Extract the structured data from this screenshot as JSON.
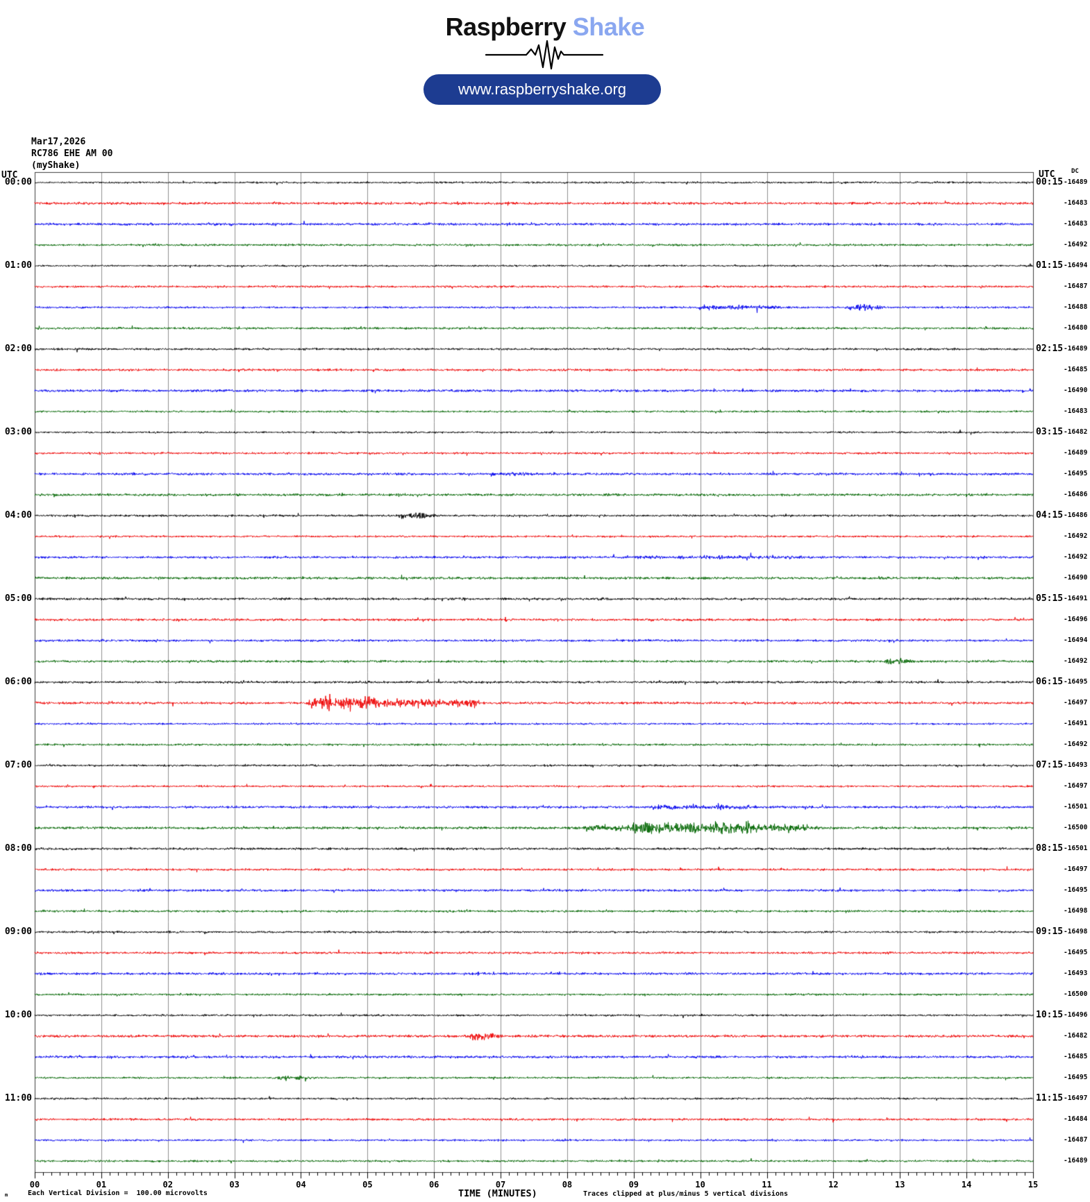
{
  "header": {
    "brand_black": "Raspberry",
    "brand_blue": "Shake",
    "brand_blue_color": "#8aa7f0",
    "url_button": {
      "label": "www.raspberryshake.org",
      "bg": "#1d3c91",
      "fg": "#ffffff"
    }
  },
  "station": {
    "date": "Mar17,2026",
    "id_line": "RC786 EHE AM 00",
    "network": "(myShake)"
  },
  "axes": {
    "utc_header_left": "UTC",
    "utc_header_right": "UTC",
    "dc_header": "DC",
    "x_tick_labels": [
      "00",
      "01",
      "02",
      "03",
      "04",
      "05",
      "06",
      "07",
      "08",
      "09",
      "10",
      "11",
      "12",
      "13",
      "14",
      "15"
    ]
  },
  "footer": {
    "left_mark": "m",
    "scale_note": "Each Vertical Division =  100.00 microvolts",
    "x_title": "TIME (MINUTES)",
    "clip_note": "Traces clipped at plus/minus 5 vertical divisions"
  },
  "chart_data": {
    "type": "line",
    "kind": "helicorder",
    "title": "RC786 EHE AM 00 (myShake) Mar17,2026",
    "xlabel": "TIME (MINUTES)",
    "x_range_minutes": [
      0,
      15
    ],
    "minutes_per_line": 15,
    "rows_per_hour": 4,
    "grid": true,
    "grid_color": "#8f8f8f",
    "border_color": "#3c3c3c",
    "trace_color_cycle": [
      "#000000",
      "#ee0000",
      "#0000ee",
      "#006600"
    ],
    "hours": [
      {
        "utc_left": "00:00",
        "utc_right": "00:15",
        "dc_offsets": [
          -16489,
          -16483,
          -16483,
          -16492
        ]
      },
      {
        "utc_left": "01:00",
        "utc_right": "01:15",
        "dc_offsets": [
          -16494,
          -16487,
          -16488,
          -16480
        ]
      },
      {
        "utc_left": "02:00",
        "utc_right": "02:15",
        "dc_offsets": [
          -16489,
          -16485,
          -16490,
          -16483
        ]
      },
      {
        "utc_left": "03:00",
        "utc_right": "03:15",
        "dc_offsets": [
          -16482,
          -16489,
          -16495,
          -16486
        ]
      },
      {
        "utc_left": "04:00",
        "utc_right": "04:15",
        "dc_offsets": [
          -16486,
          -16492,
          -16492,
          -16490
        ]
      },
      {
        "utc_left": "05:00",
        "utc_right": "05:15",
        "dc_offsets": [
          -16491,
          -16496,
          -16494,
          -16492
        ]
      },
      {
        "utc_left": "06:00",
        "utc_right": "06:15",
        "dc_offsets": [
          -16495,
          -16497,
          -16491,
          -16492
        ]
      },
      {
        "utc_left": "07:00",
        "utc_right": "07:15",
        "dc_offsets": [
          -16493,
          -16497,
          -16501,
          -16500
        ]
      },
      {
        "utc_left": "08:00",
        "utc_right": "08:15",
        "dc_offsets": [
          -16501,
          -16497,
          -16495,
          -16498
        ]
      },
      {
        "utc_left": "09:00",
        "utc_right": "09:15",
        "dc_offsets": [
          -16498,
          -16495,
          -16493,
          -16500
        ]
      },
      {
        "utc_left": "10:00",
        "utc_right": "10:15",
        "dc_offsets": [
          -16496,
          -16482,
          -16485,
          -16495
        ]
      },
      {
        "utc_left": "11:00",
        "utc_right": "11:15",
        "dc_offsets": [
          -16497,
          -16484,
          -16487,
          -16489
        ]
      }
    ],
    "events": [
      {
        "row": 6,
        "start": 10.0,
        "end": 11.0,
        "amp": 2.2
      },
      {
        "row": 6,
        "start": 12.25,
        "end": 12.55,
        "amp": 3.2
      },
      {
        "row": 14,
        "start": 6.9,
        "end": 7.25,
        "amp": 1.8
      },
      {
        "row": 16,
        "start": 5.5,
        "end": 5.85,
        "amp": 2.8
      },
      {
        "row": 18,
        "start": 9.0,
        "end": 11.5,
        "amp": 1.5
      },
      {
        "row": 23,
        "start": 12.8,
        "end": 13.0,
        "amp": 2.4
      },
      {
        "row": 25,
        "start": 4.15,
        "end": 5.15,
        "amp": 5.5
      },
      {
        "row": 25,
        "start": 5.15,
        "end": 6.05,
        "amp": 3.2
      },
      {
        "row": 25,
        "start": 6.25,
        "end": 6.5,
        "amp": 3.8
      },
      {
        "row": 30,
        "start": 9.3,
        "end": 10.7,
        "amp": 1.8
      },
      {
        "row": 31,
        "start": 8.3,
        "end": 9.0,
        "amp": 2.2
      },
      {
        "row": 31,
        "start": 9.0,
        "end": 10.7,
        "amp": 4.6
      },
      {
        "row": 31,
        "start": 10.7,
        "end": 11.6,
        "amp": 2.6
      },
      {
        "row": 41,
        "start": 6.55,
        "end": 6.8,
        "amp": 2.6
      },
      {
        "row": 43,
        "start": 3.7,
        "end": 3.95,
        "amp": 2.6
      }
    ]
  }
}
